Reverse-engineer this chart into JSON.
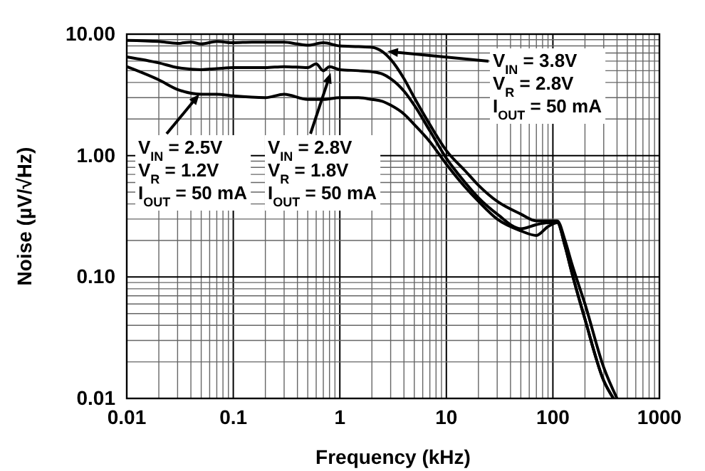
{
  "chart_data": {
    "type": "line",
    "xlabel": "Frequency (kHz)",
    "ylabel": "Noise (µV/√Hz)",
    "log": "xy",
    "grid": true,
    "marker": "none",
    "line_style": "solid",
    "xlim": [
      0.01,
      1000
    ],
    "ylim": [
      0.01,
      10
    ],
    "xticks": [
      0.01,
      0.1,
      1,
      10,
      100,
      1000
    ],
    "yticks": [
      0.01,
      {
        "value": 0.1,
        "label": "0.10"
      },
      {
        "value": 1,
        "label": "1.00"
      },
      {
        "value": 10,
        "label": "10.00"
      }
    ],
    "series": [
      {
        "color": "#000000",
        "x": [
          0.01,
          0.02,
          0.03,
          0.04,
          0.05,
          0.07,
          0.1,
          0.15,
          0.2,
          0.3,
          0.4,
          0.5,
          0.7,
          1,
          1.5,
          2,
          2.5,
          3,
          4,
          5,
          7,
          10,
          15,
          20,
          30,
          50,
          70,
          90,
          110,
          130,
          150,
          200,
          300,
          400
        ],
        "values": [
          8.9,
          8.7,
          8.4,
          8.6,
          8.3,
          8.7,
          8.5,
          8.6,
          8.6,
          8.6,
          8.3,
          8.1,
          8.5,
          8.0,
          7.9,
          7.8,
          7.2,
          6.2,
          4.3,
          3.0,
          1.8,
          1.1,
          0.75,
          0.57,
          0.42,
          0.33,
          0.29,
          0.29,
          0.29,
          0.2,
          0.13,
          0.06,
          0.018,
          0.01
        ]
      },
      {
        "color": "#000000",
        "x": [
          0.01,
          0.02,
          0.03,
          0.05,
          0.07,
          0.1,
          0.2,
          0.3,
          0.5,
          0.6,
          0.7,
          0.8,
          1,
          1.5,
          2,
          2.5,
          3,
          4,
          5,
          7,
          10,
          15,
          20,
          30,
          50,
          70,
          90,
          110,
          130,
          150,
          200,
          300,
          370
        ],
        "values": [
          6.5,
          5.8,
          5.3,
          5.1,
          5.2,
          5.3,
          5.3,
          5.4,
          5.3,
          5.7,
          5.0,
          5.4,
          5.1,
          5.0,
          4.9,
          4.7,
          4.3,
          3.4,
          2.6,
          1.6,
          0.95,
          0.6,
          0.45,
          0.33,
          0.25,
          0.27,
          0.28,
          0.28,
          0.18,
          0.11,
          0.045,
          0.014,
          0.01
        ]
      },
      {
        "color": "#000000",
        "x": [
          0.01,
          0.02,
          0.03,
          0.05,
          0.07,
          0.1,
          0.2,
          0.3,
          0.5,
          0.7,
          1,
          1.5,
          2,
          2.5,
          3,
          4,
          5,
          7,
          10,
          15,
          20,
          30,
          50,
          70,
          90,
          110,
          130,
          150,
          200,
          300,
          370
        ],
        "values": [
          5.4,
          4.2,
          3.5,
          3.2,
          3.2,
          3.1,
          3.0,
          3.2,
          2.9,
          2.9,
          3.0,
          3.0,
          2.9,
          2.8,
          2.6,
          2.2,
          1.8,
          1.3,
          0.85,
          0.55,
          0.42,
          0.3,
          0.24,
          0.22,
          0.26,
          0.28,
          0.18,
          0.11,
          0.045,
          0.014,
          0.01
        ]
      }
    ],
    "annotations": [
      {
        "text": "V$_{IN}$ = 3.8V",
        "x": 2.8,
        "y": 7.2
      },
      "V$_{R}$ = 2.8V",
      "I$_{OUT}$ = 50 mA",
      {
        "text": "V$_{IN}$ = 2.5V",
        "x": 0.048,
        "y": 3.2
      },
      "V$_{R}$ = 1.2V",
      "I$_{OUT}$ = 50 mA",
      {
        "text": "V$_{IN}$ = 2.8V",
        "x": 0.82,
        "y": 4.8
      },
      "V$_{R}$ = 1.8V",
      "I$_{OUT}$ = 50 mA"
    ]
  }
}
